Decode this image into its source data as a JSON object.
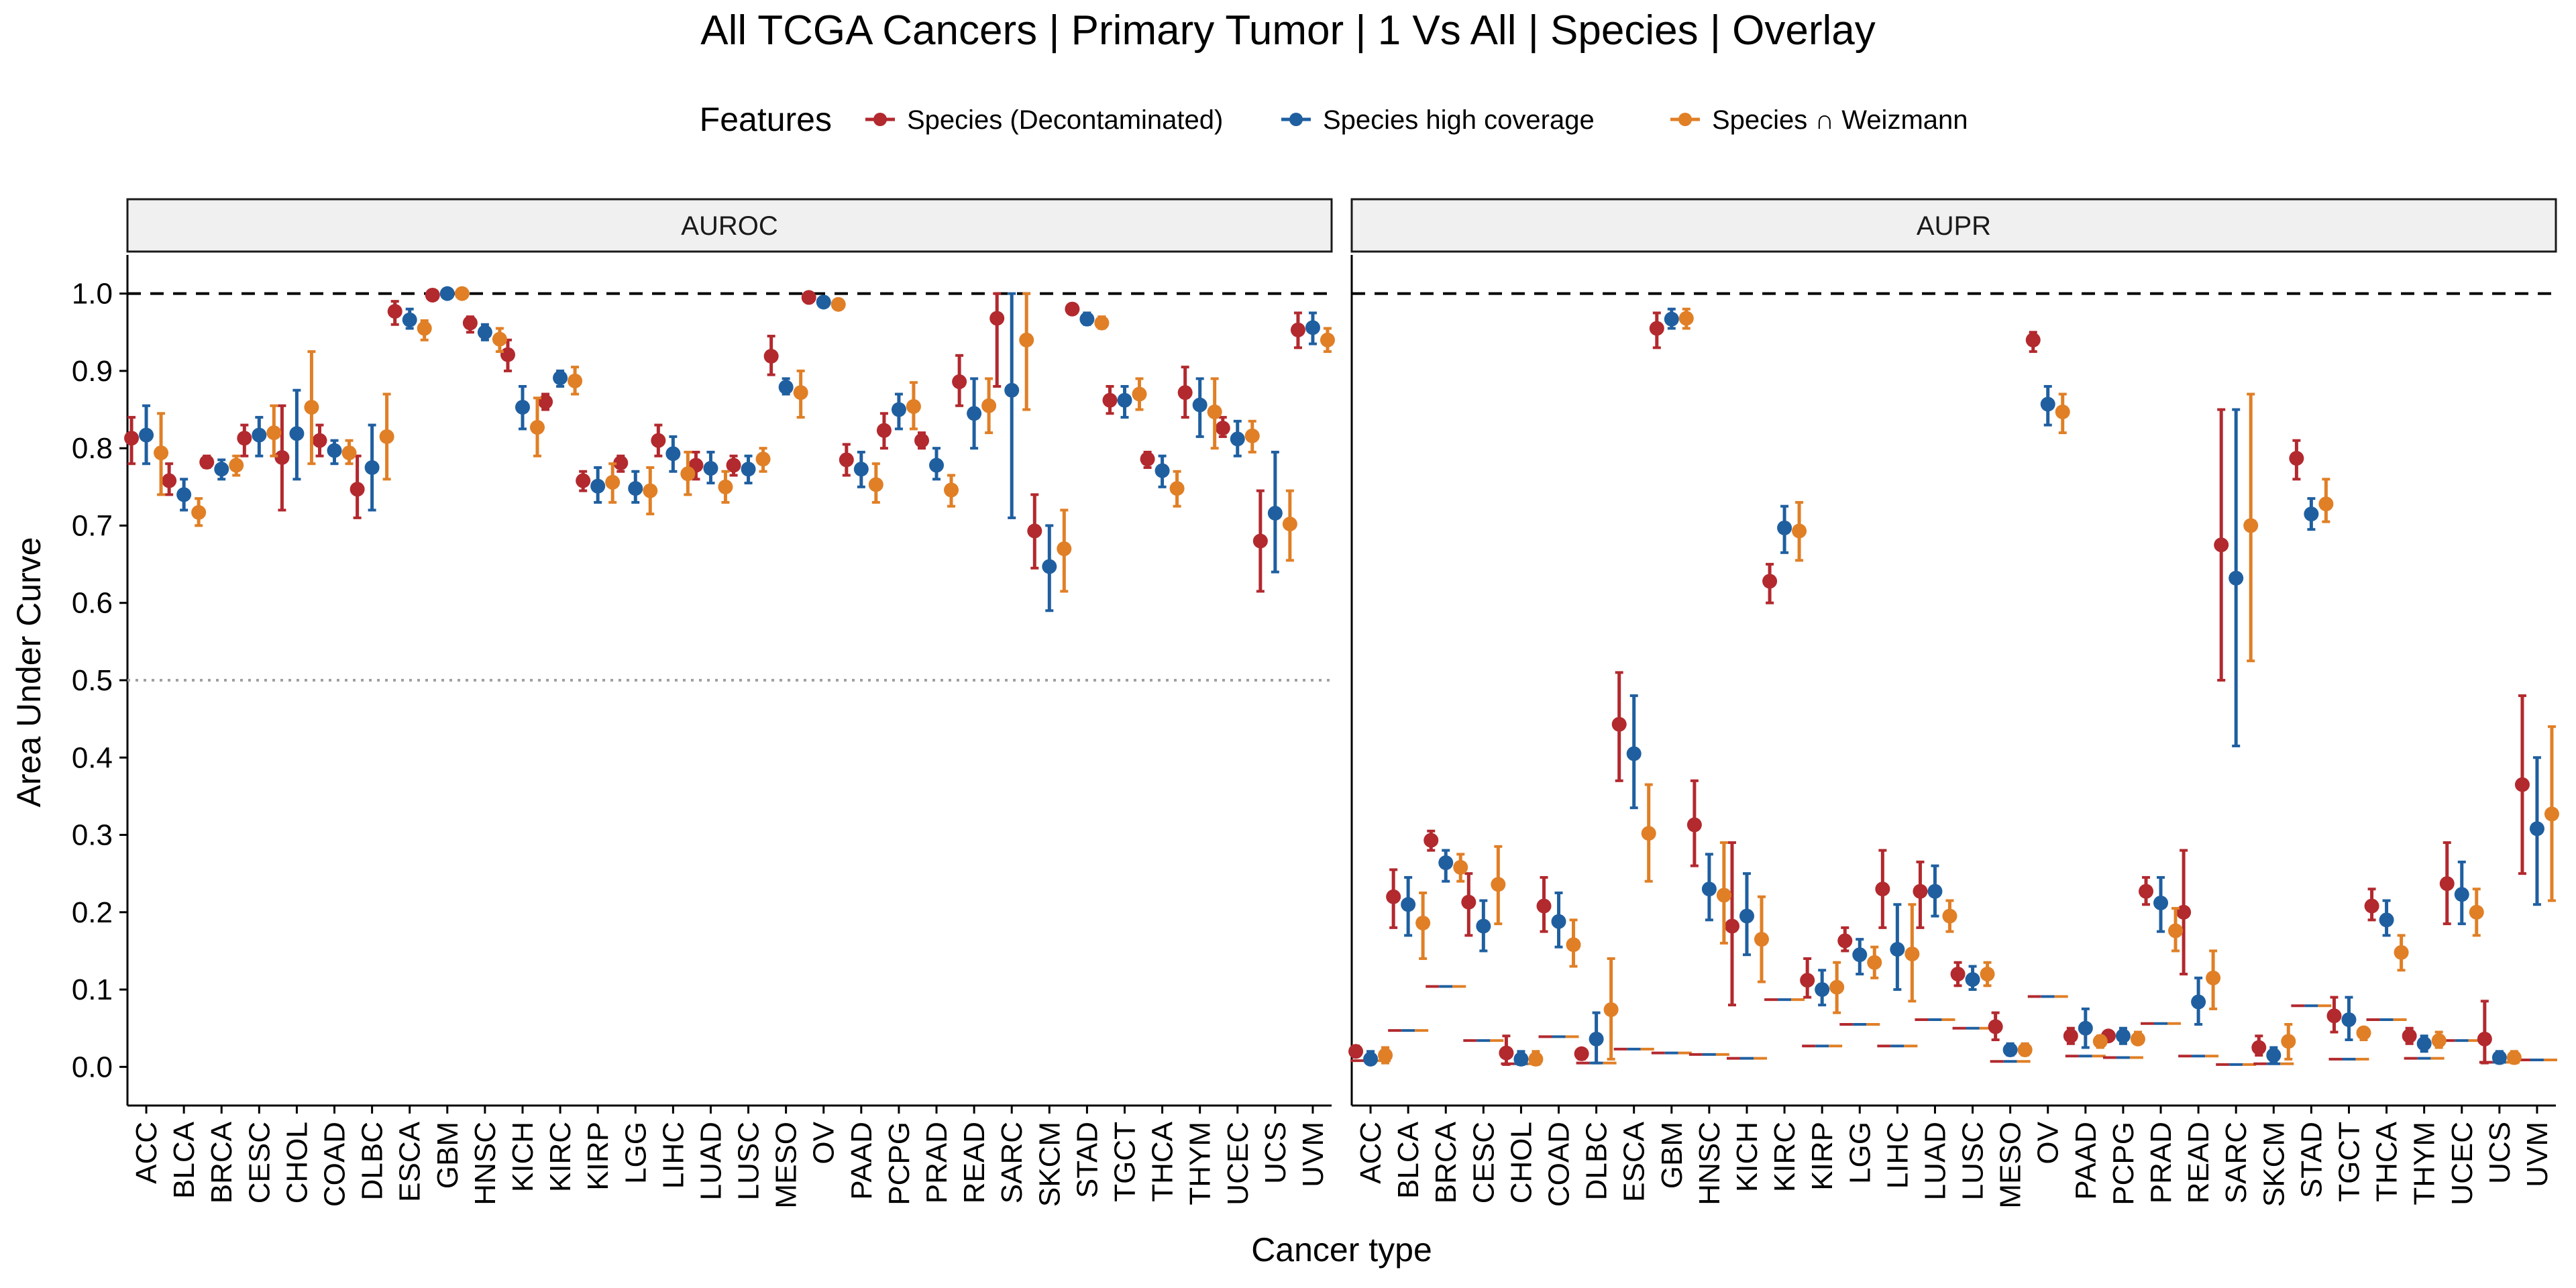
{
  "chart_data": {
    "type": "scatter",
    "title": "All TCGA Cancers | Primary Tumor | 1 Vs All | Species | Overlay",
    "xlabel": "Cancer type",
    "ylabel": "Area Under Curve",
    "ylim": [
      -0.05,
      1.05
    ],
    "y_ticks": [
      "0.0",
      "0.1",
      "0.2",
      "0.3",
      "0.4",
      "0.5",
      "0.6",
      "0.7",
      "0.8",
      "0.9",
      "1.0"
    ],
    "legend": {
      "title": "Features",
      "position": "top"
    },
    "reference_lines": [
      {
        "y": 1.0,
        "style": "dashed"
      },
      {
        "y": 0.5,
        "style": "dotted",
        "panel": "AUROC"
      }
    ],
    "categories": [
      "ACC",
      "BLCA",
      "BRCA",
      "CESC",
      "CHOL",
      "COAD",
      "DLBC",
      "ESCA",
      "GBM",
      "HNSC",
      "KICH",
      "KIRC",
      "KIRP",
      "LGG",
      "LIHC",
      "LUAD",
      "LUSC",
      "MESO",
      "OV",
      "PAAD",
      "PCPG",
      "PRAD",
      "READ",
      "SARC",
      "SKCM",
      "STAD",
      "TGCT",
      "THCA",
      "THYM",
      "UCEC",
      "UCS",
      "UVM"
    ],
    "series": [
      {
        "name": "Species (Decontaminated)",
        "color": "#B2292E"
      },
      {
        "name": "Species high coverage",
        "color": "#1F5FA0"
      },
      {
        "name": "Species ∩ Weizmann",
        "color": "#E07F26"
      }
    ],
    "panels": [
      {
        "label": "AUROC",
        "values": [
          [
            0.813,
            0.758,
            0.782,
            0.813,
            0.788,
            0.81,
            0.747,
            0.977,
            0.998,
            0.962,
            0.921,
            0.86,
            0.758,
            0.781,
            0.81,
            0.778,
            0.778,
            0.919,
            0.995,
            0.785,
            0.823,
            0.81,
            0.886,
            0.968,
            0.693,
            0.98,
            0.862,
            0.786,
            0.872,
            0.826,
            0.68,
            0.953
          ],
          [
            0.817,
            0.74,
            0.773,
            0.817,
            0.819,
            0.797,
            0.775,
            0.966,
            1.0,
            0.95,
            0.853,
            0.891,
            0.751,
            0.748,
            0.793,
            0.774,
            0.773,
            0.879,
            0.989,
            0.773,
            0.85,
            0.778,
            0.845,
            0.875,
            0.647,
            0.967,
            0.862,
            0.771,
            0.856,
            0.812,
            0.716,
            0.956
          ],
          [
            0.794,
            0.717,
            0.778,
            0.82,
            0.853,
            0.794,
            0.815,
            0.955,
            1.0,
            0.941,
            0.827,
            0.887,
            0.756,
            0.745,
            0.767,
            0.75,
            0.786,
            0.872,
            0.986,
            0.753,
            0.854,
            0.746,
            0.855,
            0.94,
            0.67,
            0.962,
            0.87,
            0.748,
            0.847,
            0.816,
            0.702,
            0.94
          ]
        ],
        "ci": [
          [
            [
              0.78,
              0.84
            ],
            [
              0.74,
              0.78
            ],
            [
              0.775,
              0.79
            ],
            [
              0.79,
              0.83
            ],
            [
              0.72,
              0.855
            ],
            [
              0.79,
              0.83
            ],
            [
              0.71,
              0.79
            ],
            [
              0.96,
              0.99
            ],
            [
              0.995,
              1.0
            ],
            [
              0.95,
              0.97
            ],
            [
              0.9,
              0.94
            ],
            [
              0.85,
              0.87
            ],
            [
              0.745,
              0.77
            ],
            [
              0.77,
              0.79
            ],
            [
              0.79,
              0.83
            ],
            [
              0.76,
              0.795
            ],
            [
              0.765,
              0.79
            ],
            [
              0.895,
              0.945
            ],
            [
              0.99,
              1.0
            ],
            [
              0.765,
              0.805
            ],
            [
              0.8,
              0.845
            ],
            [
              0.8,
              0.82
            ],
            [
              0.855,
              0.92
            ],
            [
              0.88,
              1.0
            ],
            [
              0.645,
              0.74
            ],
            [
              0.975,
              0.985
            ],
            [
              0.845,
              0.88
            ],
            [
              0.775,
              0.795
            ],
            [
              0.84,
              0.905
            ],
            [
              0.815,
              0.84
            ],
            [
              0.615,
              0.745
            ],
            [
              0.93,
              0.975
            ]
          ],
          [
            [
              0.78,
              0.855
            ],
            [
              0.72,
              0.76
            ],
            [
              0.76,
              0.785
            ],
            [
              0.79,
              0.84
            ],
            [
              0.76,
              0.875
            ],
            [
              0.78,
              0.81
            ],
            [
              0.72,
              0.83
            ],
            [
              0.955,
              0.98
            ],
            [
              1.0,
              1.0
            ],
            [
              0.94,
              0.96
            ],
            [
              0.825,
              0.88
            ],
            [
              0.88,
              0.9
            ],
            [
              0.73,
              0.775
            ],
            [
              0.73,
              0.77
            ],
            [
              0.77,
              0.815
            ],
            [
              0.755,
              0.795
            ],
            [
              0.755,
              0.79
            ],
            [
              0.87,
              0.89
            ],
            [
              0.985,
              0.995
            ],
            [
              0.75,
              0.795
            ],
            [
              0.825,
              0.87
            ],
            [
              0.76,
              0.8
            ],
            [
              0.8,
              0.89
            ],
            [
              0.71,
              1.0
            ],
            [
              0.59,
              0.7
            ],
            [
              0.96,
              0.975
            ],
            [
              0.84,
              0.88
            ],
            [
              0.75,
              0.79
            ],
            [
              0.815,
              0.89
            ],
            [
              0.79,
              0.835
            ],
            [
              0.64,
              0.795
            ],
            [
              0.935,
              0.975
            ]
          ],
          [
            [
              0.74,
              0.845
            ],
            [
              0.7,
              0.735
            ],
            [
              0.765,
              0.79
            ],
            [
              0.79,
              0.855
            ],
            [
              0.78,
              0.925
            ],
            [
              0.78,
              0.81
            ],
            [
              0.76,
              0.87
            ],
            [
              0.94,
              0.965
            ],
            [
              0.995,
              1.0
            ],
            [
              0.925,
              0.955
            ],
            [
              0.79,
              0.865
            ],
            [
              0.87,
              0.905
            ],
            [
              0.73,
              0.78
            ],
            [
              0.715,
              0.775
            ],
            [
              0.74,
              0.795
            ],
            [
              0.73,
              0.77
            ],
            [
              0.77,
              0.8
            ],
            [
              0.84,
              0.9
            ],
            [
              0.98,
              0.99
            ],
            [
              0.73,
              0.78
            ],
            [
              0.825,
              0.885
            ],
            [
              0.725,
              0.765
            ],
            [
              0.82,
              0.89
            ],
            [
              0.85,
              1.0
            ],
            [
              0.615,
              0.72
            ],
            [
              0.955,
              0.97
            ],
            [
              0.85,
              0.89
            ],
            [
              0.725,
              0.77
            ],
            [
              0.8,
              0.89
            ],
            [
              0.795,
              0.835
            ],
            [
              0.655,
              0.745
            ],
            [
              0.925,
              0.955
            ]
          ]
        ]
      },
      {
        "label": "AUPR",
        "values": [
          [
            0.02,
            0.22,
            0.293,
            0.213,
            0.018,
            0.208,
            0.017,
            0.443,
            0.955,
            0.313,
            0.182,
            0.628,
            0.112,
            0.163,
            0.23,
            0.227,
            0.12,
            0.052,
            0.94,
            0.04,
            0.04,
            0.227,
            0.2,
            0.675,
            0.025,
            0.787,
            0.066,
            0.208,
            0.04,
            0.237,
            0.036,
            0.365
          ],
          [
            0.01,
            0.21,
            0.264,
            0.182,
            0.01,
            0.188,
            0.036,
            0.405,
            0.967,
            0.23,
            0.195,
            0.697,
            0.1,
            0.145,
            0.152,
            0.227,
            0.113,
            0.022,
            0.857,
            0.05,
            0.04,
            0.212,
            0.084,
            0.632,
            0.015,
            0.715,
            0.061,
            0.19,
            0.03,
            0.223,
            0.012,
            0.308
          ],
          [
            0.015,
            0.186,
            0.258,
            0.236,
            0.01,
            0.158,
            0.074,
            0.302,
            0.968,
            0.222,
            0.165,
            0.693,
            0.103,
            0.135,
            0.146,
            0.195,
            0.12,
            0.022,
            0.847,
            0.033,
            0.036,
            0.176,
            0.115,
            0.7,
            0.033,
            0.728,
            0.044,
            0.148,
            0.034,
            0.2,
            0.012,
            0.327
          ]
        ],
        "ci": [
          [
            [
              0.015,
              0.027
            ],
            [
              0.18,
              0.255
            ],
            [
              0.28,
              0.305
            ],
            [
              0.17,
              0.25
            ],
            [
              0.003,
              0.04
            ],
            [
              0.175,
              0.245
            ],
            [
              0.01,
              0.022
            ],
            [
              0.37,
              0.51
            ],
            [
              0.93,
              0.975
            ],
            [
              0.26,
              0.37
            ],
            [
              0.08,
              0.29
            ],
            [
              0.6,
              0.65
            ],
            [
              0.09,
              0.14
            ],
            [
              0.15,
              0.18
            ],
            [
              0.18,
              0.28
            ],
            [
              0.18,
              0.265
            ],
            [
              0.105,
              0.135
            ],
            [
              0.035,
              0.07
            ],
            [
              0.925,
              0.95
            ],
            [
              0.03,
              0.05
            ],
            [
              0.035,
              0.045
            ],
            [
              0.21,
              0.245
            ],
            [
              0.12,
              0.28
            ],
            [
              0.5,
              0.85
            ],
            [
              0.015,
              0.04
            ],
            [
              0.76,
              0.81
            ],
            [
              0.045,
              0.09
            ],
            [
              0.19,
              0.23
            ],
            [
              0.03,
              0.05
            ],
            [
              0.185,
              0.29
            ],
            [
              0.005,
              0.085
            ],
            [
              0.25,
              0.48
            ]
          ],
          [
            [
              0.005,
              0.02
            ],
            [
              0.17,
              0.245
            ],
            [
              0.24,
              0.28
            ],
            [
              0.15,
              0.215
            ],
            [
              0.003,
              0.02
            ],
            [
              0.155,
              0.225
            ],
            [
              0.005,
              0.07
            ],
            [
              0.335,
              0.48
            ],
            [
              0.955,
              0.98
            ],
            [
              0.19,
              0.275
            ],
            [
              0.145,
              0.25
            ],
            [
              0.665,
              0.725
            ],
            [
              0.08,
              0.125
            ],
            [
              0.12,
              0.165
            ],
            [
              0.1,
              0.21
            ],
            [
              0.195,
              0.26
            ],
            [
              0.1,
              0.13
            ],
            [
              0.015,
              0.03
            ],
            [
              0.83,
              0.88
            ],
            [
              0.025,
              0.075
            ],
            [
              0.03,
              0.05
            ],
            [
              0.175,
              0.245
            ],
            [
              0.055,
              0.115
            ],
            [
              0.415,
              0.85
            ],
            [
              0.005,
              0.025
            ],
            [
              0.695,
              0.735
            ],
            [
              0.035,
              0.09
            ],
            [
              0.17,
              0.215
            ],
            [
              0.02,
              0.04
            ],
            [
              0.185,
              0.265
            ],
            [
              0.005,
              0.02
            ],
            [
              0.21,
              0.4
            ]
          ],
          [
            [
              0.005,
              0.025
            ],
            [
              0.14,
              0.225
            ],
            [
              0.24,
              0.275
            ],
            [
              0.185,
              0.285
            ],
            [
              0.003,
              0.02
            ],
            [
              0.13,
              0.19
            ],
            [
              0.01,
              0.14
            ],
            [
              0.24,
              0.365
            ],
            [
              0.955,
              0.98
            ],
            [
              0.16,
              0.29
            ],
            [
              0.11,
              0.22
            ],
            [
              0.655,
              0.73
            ],
            [
              0.07,
              0.135
            ],
            [
              0.115,
              0.155
            ],
            [
              0.085,
              0.21
            ],
            [
              0.175,
              0.215
            ],
            [
              0.105,
              0.135
            ],
            [
              0.015,
              0.03
            ],
            [
              0.82,
              0.87
            ],
            [
              0.025,
              0.04
            ],
            [
              0.03,
              0.045
            ],
            [
              0.15,
              0.205
            ],
            [
              0.075,
              0.15
            ],
            [
              0.525,
              0.87
            ],
            [
              0.01,
              0.055
            ],
            [
              0.705,
              0.76
            ],
            [
              0.035,
              0.05
            ],
            [
              0.125,
              0.17
            ],
            [
              0.025,
              0.045
            ],
            [
              0.17,
              0.23
            ],
            [
              0.005,
              0.02
            ],
            [
              0.215,
              0.44
            ]
          ]
        ],
        "baseline": [
          0.008,
          0.047,
          0.104,
          0.034,
          0.004,
          0.039,
          0.005,
          0.023,
          0.018,
          0.016,
          0.011,
          0.087,
          0.027,
          0.055,
          0.027,
          0.061,
          0.05,
          0.007,
          0.091,
          0.014,
          0.012,
          0.056,
          0.014,
          0.003,
          0.004,
          0.079,
          0.01,
          0.061,
          0.011,
          0.034,
          0.006,
          0.009
        ]
      }
    ]
  }
}
